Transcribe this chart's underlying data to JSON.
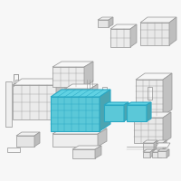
{
  "bg": "#f7f7f7",
  "lc": "#9a9a9a",
  "hc": "#2aa8c4",
  "hf": "#5bc8d8",
  "lw": 0.55,
  "hlw": 0.8,
  "figsize": [
    2.0,
    2.0
  ],
  "dpi": 100
}
